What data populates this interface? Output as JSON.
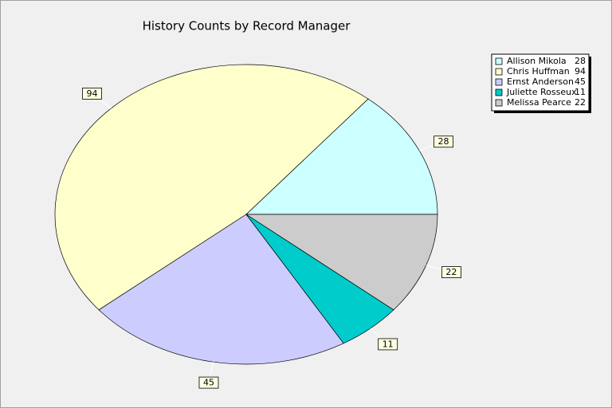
{
  "chart_data": {
    "type": "pie",
    "title": "History Counts by Record Manager",
    "categories": [
      "Allison Mikola",
      "Chris Huffman",
      "Ernst Anderson",
      "Juliette Rosseux",
      "Melissa Pearce"
    ],
    "values": [
      28,
      94,
      45,
      11,
      22
    ],
    "colors": [
      "#ccffff",
      "#ffffcc",
      "#ccccff",
      "#00cccc",
      "#cccccc"
    ],
    "legend": "top-right"
  }
}
